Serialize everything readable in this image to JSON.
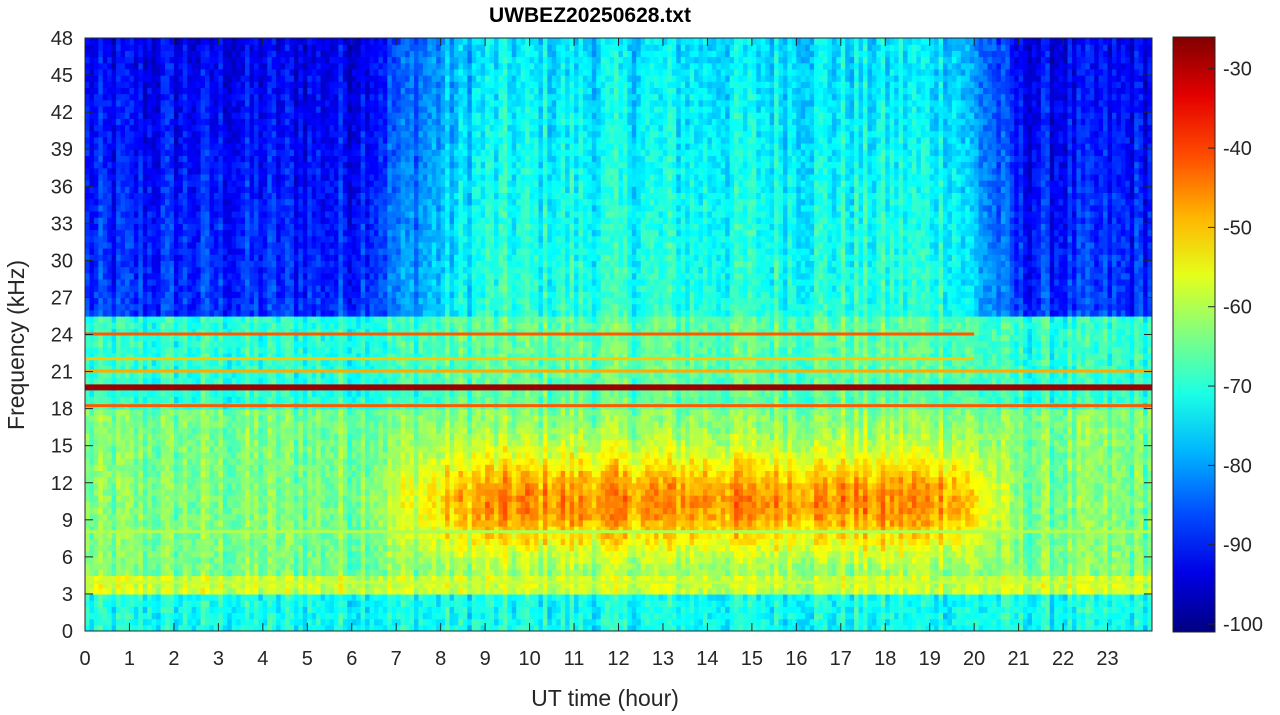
{
  "chart_data": {
    "type": "heatmap",
    "title": "UWBEZ20250628.txt",
    "xlabel": "UT time (hour)",
    "ylabel": "Frequency (kHz)",
    "xlim": [
      0,
      24
    ],
    "ylim": [
      0,
      48
    ],
    "x_ticks": [
      0,
      1,
      2,
      3,
      4,
      5,
      6,
      7,
      8,
      9,
      10,
      11,
      12,
      13,
      14,
      15,
      16,
      17,
      18,
      19,
      20,
      21,
      22,
      23
    ],
    "y_ticks": [
      0,
      3,
      6,
      9,
      12,
      15,
      18,
      21,
      24,
      27,
      30,
      33,
      36,
      39,
      42,
      45,
      48
    ],
    "colorbar": {
      "range": [
        -101,
        -26
      ],
      "ticks": [
        -100,
        -90,
        -80,
        -70,
        -60,
        -50,
        -40,
        -30
      ],
      "colormap": "jet"
    },
    "features": [
      {
        "freq_khz": 19.8,
        "level_db": -28,
        "span_hours": [
          0,
          24
        ]
      },
      {
        "freq_khz": 18.2,
        "level_db": -42,
        "span_hours": [
          0,
          24
        ]
      },
      {
        "freq_khz": 24.0,
        "level_db": -42,
        "span_hours": [
          0,
          20
        ]
      },
      {
        "freq_khz": 22.0,
        "level_db": -50,
        "span_hours": [
          0,
          20
        ]
      },
      {
        "freq_khz": 21.0,
        "level_db": -48,
        "span_hours": [
          0,
          24
        ]
      },
      {
        "freq_khz": 3.9,
        "level_db": -58,
        "span_hours": [
          0,
          24
        ]
      },
      {
        "freq_khz": 8.0,
        "level_db": -60,
        "span_hours": [
          0,
          24
        ]
      }
    ]
  }
}
